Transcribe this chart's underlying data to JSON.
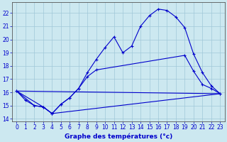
{
  "background_color": "#cce8f0",
  "grid_color": "#a0c8d8",
  "line_color": "#0000cc",
  "xlabel": "Graphe des températures (°c)",
  "xlim": [
    -0.5,
    23.5
  ],
  "ylim": [
    13.8,
    22.8
  ],
  "yticks": [
    14,
    15,
    16,
    17,
    18,
    19,
    20,
    21,
    22
  ],
  "xticks": [
    0,
    1,
    2,
    3,
    4,
    5,
    6,
    7,
    8,
    9,
    10,
    11,
    12,
    13,
    14,
    15,
    16,
    17,
    18,
    19,
    20,
    21,
    22,
    23
  ],
  "series": [
    {
      "x": [
        0,
        1,
        2,
        3,
        4,
        5,
        6,
        7,
        8,
        9,
        10,
        11,
        12,
        13,
        14,
        15,
        16,
        17,
        18,
        19,
        20,
        21,
        22,
        23
      ],
      "y": [
        16.1,
        15.4,
        15.0,
        14.9,
        14.4,
        15.1,
        15.6,
        16.3,
        17.5,
        18.5,
        19.4,
        20.2,
        19.0,
        19.5,
        21.0,
        21.8,
        22.3,
        22.2,
        21.7,
        20.9,
        18.9,
        17.5,
        16.5,
        15.9
      ],
      "marker": "+"
    },
    {
      "x": [
        0,
        23
      ],
      "y": [
        16.1,
        15.9
      ],
      "marker": null
    },
    {
      "x": [
        0,
        2,
        3,
        4,
        23
      ],
      "y": [
        16.1,
        15.0,
        14.9,
        14.4,
        15.9
      ],
      "marker": null
    },
    {
      "x": [
        0,
        3,
        4,
        5,
        6,
        7,
        8,
        9,
        19,
        20,
        21,
        22,
        23
      ],
      "y": [
        16.1,
        14.9,
        14.4,
        15.1,
        15.6,
        16.3,
        17.2,
        17.7,
        18.8,
        17.6,
        16.6,
        16.3,
        15.9
      ],
      "marker": "+"
    }
  ]
}
